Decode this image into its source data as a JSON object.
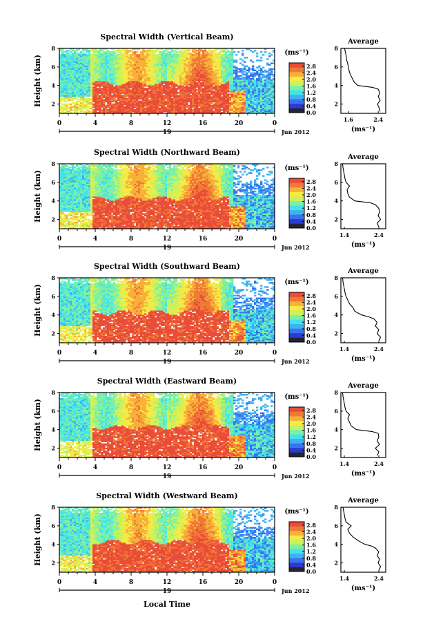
{
  "chart_data": {
    "type": "heatmap",
    "date_label": "Jun 2012",
    "day_label": "19",
    "x_tick_labels": [
      "0",
      "4",
      "8",
      "12",
      "16",
      "20",
      "0"
    ],
    "x_ticks_hours": [
      0,
      4,
      8,
      12,
      16,
      20,
      24
    ],
    "xlim_hours": [
      0,
      24
    ],
    "xlabel": "Local Time",
    "ylabel": "Height (km)",
    "y_tick_labels": [
      "2",
      "4",
      "6",
      "8"
    ],
    "y_ticks": [
      2,
      4,
      6,
      8
    ],
    "ylim": [
      1,
      8
    ],
    "colorbar": {
      "unit": "(ms⁻¹)",
      "tick_labels": [
        "0.0",
        "0.4",
        "0.8",
        "1.2",
        "1.6",
        "2.0",
        "2.4",
        "2.8"
      ],
      "ticks": [
        0.0,
        0.4,
        0.8,
        1.2,
        1.6,
        2.0,
        2.4,
        2.8
      ],
      "range": [
        0,
        3.0
      ],
      "colors": [
        "#232335",
        "#2c3bd0",
        "#3a73ee",
        "#3db2f2",
        "#45e3e8",
        "#7df0a6",
        "#c9f25c",
        "#f6ea45",
        "#f7b13a",
        "#f07a35",
        "#ea4c3a"
      ]
    },
    "average_profile": {
      "title": "Average",
      "xlabel": "(ms⁻¹)",
      "ylim": [
        1,
        8
      ],
      "y_ticks": [
        2,
        4,
        6,
        8
      ],
      "y_tick_labels": [
        "2",
        "4",
        "6",
        "8"
      ]
    },
    "panels": [
      {
        "title": "Spectral Width (Vertical Beam)",
        "avg_x_tick_labels": [
          "1.6",
          "2.4"
        ],
        "avg_x_ticks": [
          1.6,
          2.4
        ],
        "avg_xlim": [
          1.4,
          2.6
        ],
        "avg_profile": [
          [
            2.45,
            1.2
          ],
          [
            2.42,
            1.6
          ],
          [
            2.38,
            2.0
          ],
          [
            2.45,
            2.4
          ],
          [
            2.4,
            2.8
          ],
          [
            2.44,
            3.2
          ],
          [
            2.4,
            3.6
          ],
          [
            2.25,
            3.8
          ],
          [
            1.85,
            4.0
          ],
          [
            1.75,
            4.4
          ],
          [
            1.7,
            4.8
          ],
          [
            1.65,
            5.2
          ],
          [
            1.62,
            5.6
          ],
          [
            1.6,
            6.0
          ],
          [
            1.58,
            6.4
          ],
          [
            1.55,
            6.8
          ],
          [
            1.54,
            7.2
          ],
          [
            1.52,
            7.6
          ],
          [
            1.5,
            8.0
          ]
        ],
        "orig_print": "Spectral Width (Vertical Beam)"
      },
      {
        "title": "Spectral Width (Northward Beam)",
        "avg_x_tick_labels": [
          "1.4",
          "2.4"
        ],
        "avg_x_ticks": [
          1.4,
          2.4
        ],
        "avg_xlim": [
          1.3,
          2.6
        ],
        "avg_profile": [
          [
            2.4,
            1.2
          ],
          [
            2.35,
            1.6
          ],
          [
            2.45,
            2.0
          ],
          [
            2.38,
            2.4
          ],
          [
            2.42,
            2.8
          ],
          [
            2.4,
            3.2
          ],
          [
            2.3,
            3.6
          ],
          [
            2.15,
            3.8
          ],
          [
            1.7,
            4.0
          ],
          [
            1.55,
            4.4
          ],
          [
            1.5,
            4.8
          ],
          [
            1.48,
            5.2
          ],
          [
            1.55,
            5.6
          ],
          [
            1.45,
            6.0
          ],
          [
            1.42,
            6.4
          ],
          [
            1.4,
            6.8
          ],
          [
            1.38,
            7.2
          ],
          [
            1.36,
            7.6
          ],
          [
            1.35,
            8.0
          ]
        ]
      },
      {
        "title": "Spectral Width (Southward Beam)",
        "avg_x_tick_labels": [
          "1.4",
          "2.4"
        ],
        "avg_x_ticks": [
          1.4,
          2.4
        ],
        "avg_xlim": [
          1.3,
          2.6
        ],
        "avg_profile": [
          [
            2.4,
            1.2
          ],
          [
            2.45,
            1.6
          ],
          [
            2.35,
            2.0
          ],
          [
            2.4,
            2.4
          ],
          [
            2.3,
            2.8
          ],
          [
            2.35,
            3.2
          ],
          [
            2.25,
            3.6
          ],
          [
            2.1,
            3.8
          ],
          [
            1.9,
            4.0
          ],
          [
            1.7,
            4.4
          ],
          [
            1.65,
            4.8
          ],
          [
            1.55,
            5.2
          ],
          [
            1.5,
            5.6
          ],
          [
            1.45,
            6.0
          ],
          [
            1.42,
            6.4
          ],
          [
            1.4,
            6.8
          ],
          [
            1.38,
            7.2
          ],
          [
            1.36,
            7.6
          ],
          [
            1.35,
            8.0
          ]
        ]
      },
      {
        "title": "Spectral Width (Eastward Beam)",
        "avg_x_tick_labels": [
          "1.4",
          "2.4"
        ],
        "avg_x_ticks": [
          1.4,
          2.4
        ],
        "avg_xlim": [
          1.3,
          2.6
        ],
        "avg_profile": [
          [
            2.35,
            1.2
          ],
          [
            2.4,
            1.6
          ],
          [
            2.3,
            2.0
          ],
          [
            2.42,
            2.4
          ],
          [
            2.35,
            2.8
          ],
          [
            2.4,
            3.2
          ],
          [
            2.38,
            3.6
          ],
          [
            2.2,
            3.8
          ],
          [
            1.75,
            4.0
          ],
          [
            1.6,
            4.4
          ],
          [
            1.55,
            4.8
          ],
          [
            1.5,
            5.2
          ],
          [
            1.55,
            5.6
          ],
          [
            1.45,
            6.0
          ],
          [
            1.42,
            6.4
          ],
          [
            1.4,
            6.8
          ],
          [
            1.38,
            7.2
          ],
          [
            1.36,
            7.6
          ],
          [
            1.35,
            8.0
          ]
        ]
      },
      {
        "title": "Spectral Width (Westward Beam)",
        "avg_x_tick_labels": [
          "1.4",
          "2.4"
        ],
        "avg_x_ticks": [
          1.4,
          2.4
        ],
        "avg_xlim": [
          1.3,
          2.6
        ],
        "avg_profile": [
          [
            2.4,
            1.2
          ],
          [
            2.45,
            1.6
          ],
          [
            2.38,
            2.0
          ],
          [
            2.42,
            2.4
          ],
          [
            2.35,
            2.8
          ],
          [
            2.4,
            3.2
          ],
          [
            2.3,
            3.6
          ],
          [
            2.2,
            3.8
          ],
          [
            2.0,
            4.0
          ],
          [
            1.8,
            4.4
          ],
          [
            1.65,
            4.8
          ],
          [
            1.55,
            5.2
          ],
          [
            1.5,
            5.6
          ],
          [
            1.6,
            6.0
          ],
          [
            1.45,
            6.4
          ],
          [
            1.42,
            6.8
          ],
          [
            1.4,
            7.2
          ],
          [
            1.38,
            7.6
          ],
          [
            1.36,
            8.0
          ]
        ]
      }
    ]
  }
}
